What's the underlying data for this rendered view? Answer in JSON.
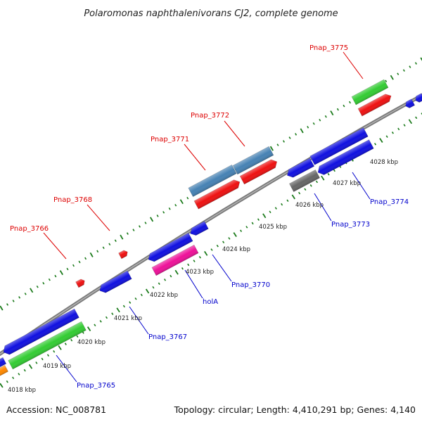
{
  "title": "Polaromonas naphthalenivorans CJ2, complete genome",
  "footer": {
    "accession": "Accession: NC_008781",
    "summary": "Topology: circular; Length: 4,410,291 bp; Genes: 4,140"
  },
  "colors": {
    "backbone": "#7a7a7a",
    "tick": "#1a7a1a",
    "label_top": "#dd0000",
    "label_bottom": "#0000cc",
    "blue": "#1010e0",
    "red": "#ee1111",
    "green": "#33cc33",
    "steelblue": "#4682b4",
    "magenta": "#ee1199",
    "gray": "#666666",
    "orange": "#ff8800"
  },
  "kbp_ticks": [
    "4018 kbp",
    "4019 kbp",
    "4020 kbp",
    "4021 kbp",
    "4022 kbp",
    "4023 kbp",
    "4024 kbp",
    "4025 kbp",
    "4026 kbp",
    "4027 kbp",
    "4028 kbp"
  ],
  "top_labels": [
    "Pnap_3766",
    "Pnap_3768",
    "Pnap_3771",
    "Pnap_3772",
    "Pnap_3775"
  ],
  "bottom_labels": [
    "Pnap_3765",
    "Pnap_3767",
    "holA",
    "Pnap_3770",
    "Pnap_3773",
    "Pnap_3774"
  ]
}
